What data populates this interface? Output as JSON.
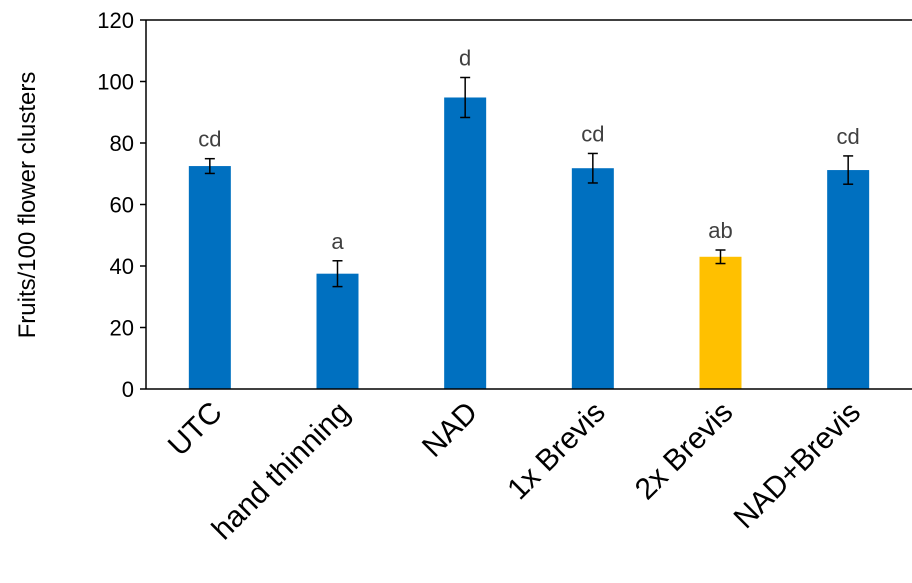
{
  "chart_data": {
    "type": "bar",
    "ylabel": "Fruits/100 flower clusters",
    "ylim": [
      0,
      120
    ],
    "yticks": [
      0,
      20,
      40,
      60,
      80,
      100,
      120
    ],
    "categories": [
      "UTC",
      "hand thinning",
      "NAD",
      "1x Brevis",
      "2x Brevis",
      "NAD+Brevis"
    ],
    "values": [
      72.5,
      37.5,
      94.8,
      71.8,
      43,
      71.2
    ],
    "errors": [
      2.4,
      4.2,
      6.5,
      4.8,
      2.2,
      4.6
    ],
    "letters": [
      "cd",
      "a",
      "d",
      "cd",
      "ab",
      "cd"
    ],
    "colors": [
      "#0070C0",
      "#0070C0",
      "#0070C0",
      "#0070C0",
      "#FFC000",
      "#0070C0"
    ],
    "grid": false,
    "legend": "none"
  }
}
